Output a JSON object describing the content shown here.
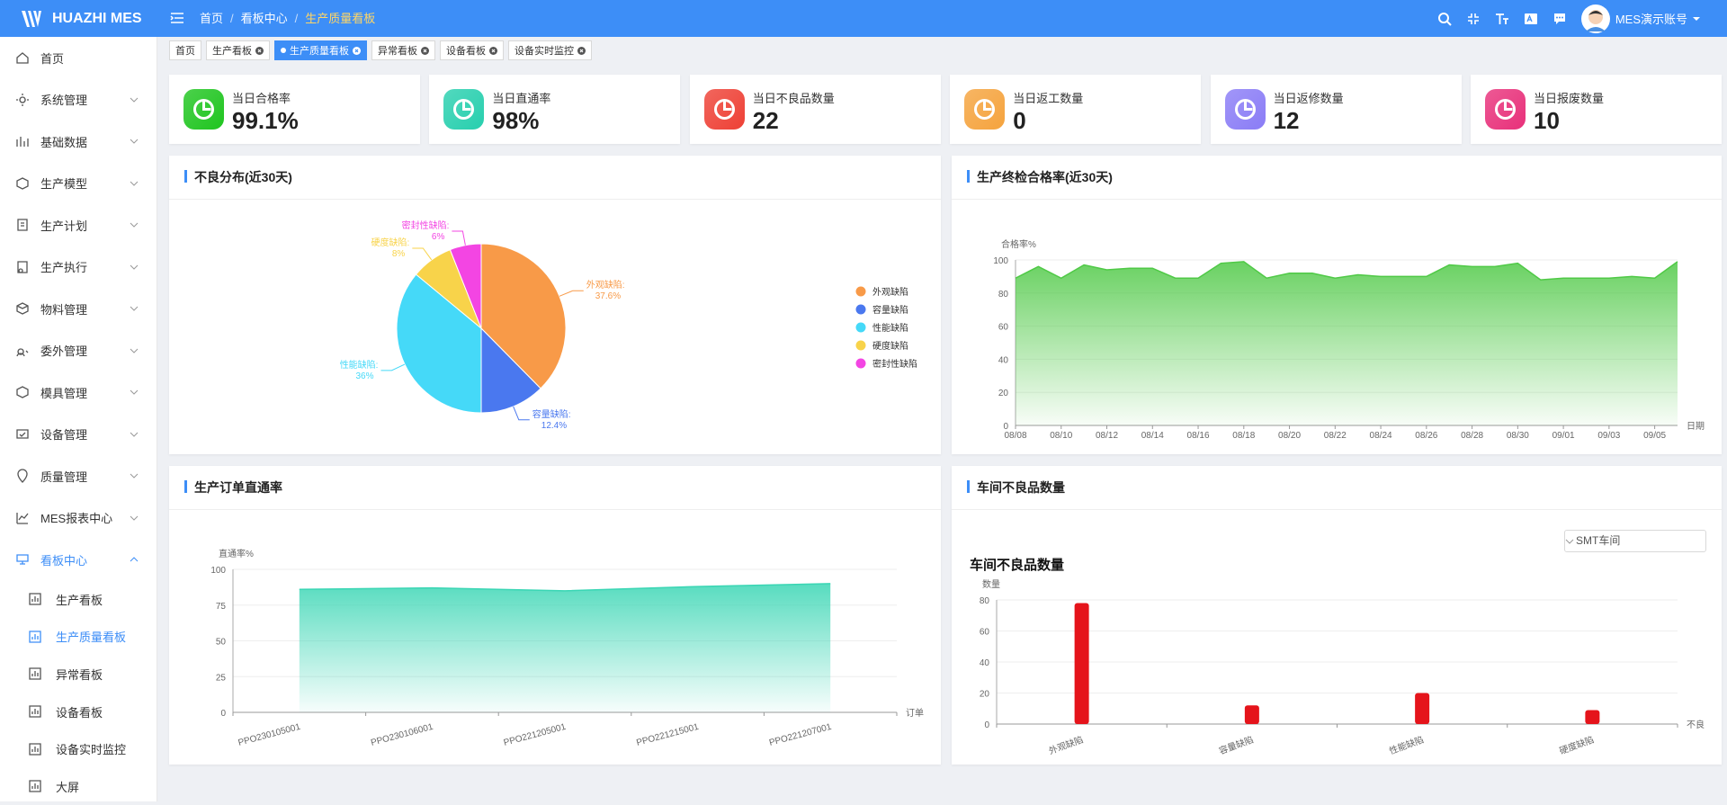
{
  "header": {
    "logo": "HUAZHI MES",
    "breadcrumb": [
      "首页",
      "看板中心",
      "生产质量看板"
    ],
    "user": "MES演示账号"
  },
  "menu": [
    {
      "label": "首页"
    },
    {
      "label": "系统管理"
    },
    {
      "label": "基础数据"
    },
    {
      "label": "生产模型"
    },
    {
      "label": "生产计划"
    },
    {
      "label": "生产执行"
    },
    {
      "label": "物料管理"
    },
    {
      "label": "委外管理"
    },
    {
      "label": "模具管理"
    },
    {
      "label": "设备管理"
    },
    {
      "label": "质量管理"
    },
    {
      "label": "MES报表中心"
    },
    {
      "label": "看板中心",
      "active": true,
      "children": [
        {
          "label": "生产看板"
        },
        {
          "label": "生产质量看板",
          "active": true
        },
        {
          "label": "异常看板"
        },
        {
          "label": "设备看板"
        },
        {
          "label": "设备实时监控"
        },
        {
          "label": "大屏"
        }
      ]
    }
  ],
  "tabs": [
    {
      "label": "首页"
    },
    {
      "label": "生产看板",
      "closable": true
    },
    {
      "label": "生产质量看板",
      "closable": true,
      "active": true
    },
    {
      "label": "异常看板",
      "closable": true
    },
    {
      "label": "设备看板",
      "closable": true
    },
    {
      "label": "设备实时监控",
      "closable": true
    }
  ],
  "stats": [
    {
      "label": "当日合格率",
      "value": "99.1%",
      "color": "#1fc51f"
    },
    {
      "label": "当日直通率",
      "value": "98%",
      "color": "#27cfae"
    },
    {
      "label": "当日不良品数量",
      "value": "22",
      "color": "#ee4035"
    },
    {
      "label": "当日返工数量",
      "value": "0",
      "color": "#f5a33d"
    },
    {
      "label": "当日返修数量",
      "value": "12",
      "color": "#8a7cf6"
    },
    {
      "label": "当日报废数量",
      "value": "10",
      "color": "#e8307a"
    }
  ],
  "chart_data": [
    {
      "type": "pie",
      "title": "不良分布(近30天)",
      "categories": [
        "外观缺陷",
        "容量缺陷",
        "性能缺陷",
        "硬度缺陷",
        "密封性缺陷"
      ],
      "slice_labels": [
        "外观缺陷:",
        "容量缺陷:",
        "性能缺陷:",
        "硬度缺陷:",
        "密封性缺陷:"
      ],
      "values": [
        37.6,
        12.4,
        36,
        8,
        6
      ],
      "value_labels": [
        "37.6%",
        "12.4%",
        "36%",
        "8%",
        "6%"
      ],
      "colors": [
        "#f89a48",
        "#4a78ef",
        "#45d9f8",
        "#f8d34a",
        "#f345e3"
      ],
      "legend": "right"
    },
    {
      "type": "area",
      "title": "生产终检合格率(近30天)",
      "y_label": "合格率%",
      "x_label": "日期",
      "categories": [
        "08/08",
        null,
        "08/10",
        null,
        "08/12",
        null,
        "08/14",
        null,
        "08/16",
        null,
        "08/18",
        null,
        "08/20",
        null,
        "08/22",
        null,
        "08/24",
        null,
        "08/26",
        null,
        "08/28",
        null,
        "08/30",
        null,
        "09/01",
        null,
        "09/03",
        null,
        "09/05",
        null
      ],
      "values": [
        89,
        96,
        89,
        97,
        94,
        95,
        95,
        89,
        89,
        98,
        99,
        89,
        92,
        92,
        89,
        91,
        90,
        90,
        90,
        97,
        96,
        96,
        98,
        88,
        89,
        89,
        89,
        90,
        89,
        99
      ],
      "color": "#4fc946",
      "ylim": [
        0,
        100
      ],
      "yticks": [
        0,
        20,
        40,
        60,
        80,
        100
      ],
      "grid": true,
      "boundary_gap": false
    },
    {
      "type": "area",
      "title": "生产订单直通率",
      "y_label": "直通率%",
      "x_label": "订单",
      "categories": [
        "PPO230105001",
        "PPO230106001",
        "PPO221205001",
        "PPO221215001",
        "PPO221207001"
      ],
      "values": [
        86,
        87,
        85,
        88,
        90
      ],
      "color": "#3ad6b4",
      "ylim": [
        0,
        100
      ],
      "yticks": [
        0,
        25,
        50,
        75,
        100
      ],
      "grid": true,
      "boundary_gap": true
    },
    {
      "type": "bar",
      "title": "车间不良品数量",
      "subtitle": "车间不良品数量",
      "y_label": "数量",
      "x_label": "不良",
      "filter": "SMT车间",
      "categories": [
        "外观缺陷",
        "容量缺陷",
        "性能缺陷",
        "硬度缺陷"
      ],
      "values": [
        78,
        12,
        20,
        9
      ],
      "color": "#e5141b",
      "ylim": [
        0,
        80
      ],
      "yticks": [
        0,
        20,
        40,
        60,
        80
      ],
      "grid": true,
      "boundary_gap": true
    }
  ]
}
